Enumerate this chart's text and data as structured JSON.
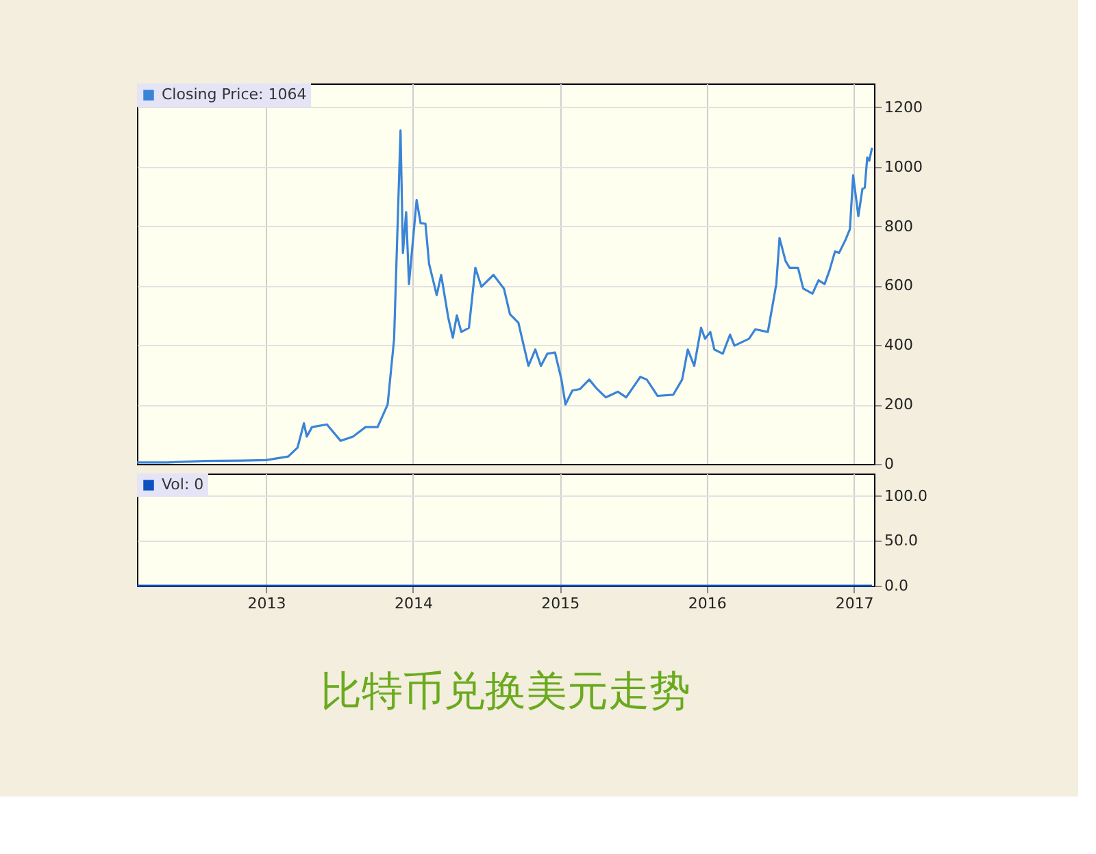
{
  "chart_data": [
    {
      "type": "line",
      "legend": "top left",
      "grid": true,
      "tick_labels": "y",
      "xlim": [
        "2012-02-15",
        "2017-02-20"
      ],
      "xticks": [
        "2013",
        "2014",
        "2015",
        "2016",
        "2017"
      ],
      "ylim": [
        0,
        1280
      ],
      "yticks": [
        0,
        200,
        400,
        600,
        800,
        1000,
        1200
      ],
      "series": [
        {
          "name": "Closing Price: 1064",
          "color": "#3a84d8",
          "x": [
            "2012-02-15",
            "2012-05-01",
            "2012-08-01",
            "2012-11-01",
            "2013-01-01",
            "2013-02-25",
            "2013-03-20",
            "2013-04-05",
            "2013-04-12",
            "2013-04-25",
            "2013-06-01",
            "2013-07-05",
            "2013-08-05",
            "2013-09-05",
            "2013-10-05",
            "2013-10-30",
            "2013-11-15",
            "2013-12-01",
            "2013-12-07",
            "2013-12-15",
            "2013-12-22",
            "2014-01-10",
            "2014-01-20",
            "2014-02-01",
            "2014-02-10",
            "2014-03-01",
            "2014-03-12",
            "2014-03-30",
            "2014-04-10",
            "2014-04-20",
            "2014-05-01",
            "2014-05-20",
            "2014-06-05",
            "2014-06-20",
            "2014-07-20",
            "2014-08-15",
            "2014-08-30",
            "2014-09-20",
            "2014-10-15",
            "2014-11-01",
            "2014-11-15",
            "2014-12-01",
            "2014-12-20",
            "2015-01-05",
            "2015-01-15",
            "2015-02-01",
            "2015-02-20",
            "2015-03-15",
            "2015-04-01",
            "2015-04-25",
            "2015-05-25",
            "2015-06-15",
            "2015-07-20",
            "2015-08-05",
            "2015-09-01",
            "2015-10-10",
            "2015-11-01",
            "2015-11-15",
            "2015-12-01",
            "2015-12-18",
            "2015-12-28",
            "2016-01-10",
            "2016-01-20",
            "2016-02-10",
            "2016-02-28",
            "2016-03-10",
            "2016-04-15",
            "2016-05-01",
            "2016-06-01",
            "2016-06-22",
            "2016-06-30",
            "2016-07-15",
            "2016-07-25",
            "2016-08-15",
            "2016-08-28",
            "2016-09-20",
            "2016-10-05",
            "2016-10-20",
            "2016-11-01",
            "2016-11-15",
            "2016-11-25",
            "2016-12-10",
            "2016-12-22",
            "2016-12-30",
            "2017-01-12",
            "2017-01-22",
            "2017-01-28",
            "2017-02-03",
            "2017-02-08",
            "2017-02-15"
          ],
          "values": [
            5,
            5,
            10,
            11,
            13,
            25,
            55,
            137,
            92,
            124,
            133,
            78,
            92,
            124,
            124,
            200,
            420,
            1122,
            710,
            847,
            605,
            888,
            810,
            808,
            673,
            568,
            636,
            490,
            425,
            500,
            444,
            458,
            660,
            596,
            636,
            590,
            504,
            475,
            330,
            385,
            330,
            371,
            375,
            284,
            200,
            247,
            252,
            284,
            256,
            224,
            243,
            224,
            293,
            284,
            229,
            233,
            284,
            385,
            330,
            458,
            421,
            444,
            385,
            371,
            435,
            398,
            421,
            453,
            444,
            605,
            760,
            683,
            660,
            660,
            590,
            573,
            618,
            605,
            650,
            715,
            710,
            751,
            790,
            971,
            834,
            925,
            930,
            1031,
            1020,
            1064
          ]
        }
      ]
    },
    {
      "type": "line",
      "legend": "top left",
      "grid": true,
      "title": "比特币兑换美元走势",
      "xlim": [
        "2012-02-15",
        "2017-02-20"
      ],
      "xticks": [
        "2013",
        "2014",
        "2015",
        "2016",
        "2017"
      ],
      "ylim": [
        0,
        125
      ],
      "yticks": [
        {
          "value": 0,
          "label": "0.0"
        },
        {
          "value": 50,
          "label": "50.0"
        },
        {
          "value": 100,
          "label": "100.0"
        }
      ],
      "series": [
        {
          "name": "Vol: 0",
          "color": "#0a50c0",
          "x": [
            "2012-02-15",
            "2017-02-15"
          ],
          "values": [
            0,
            0
          ]
        }
      ]
    }
  ]
}
